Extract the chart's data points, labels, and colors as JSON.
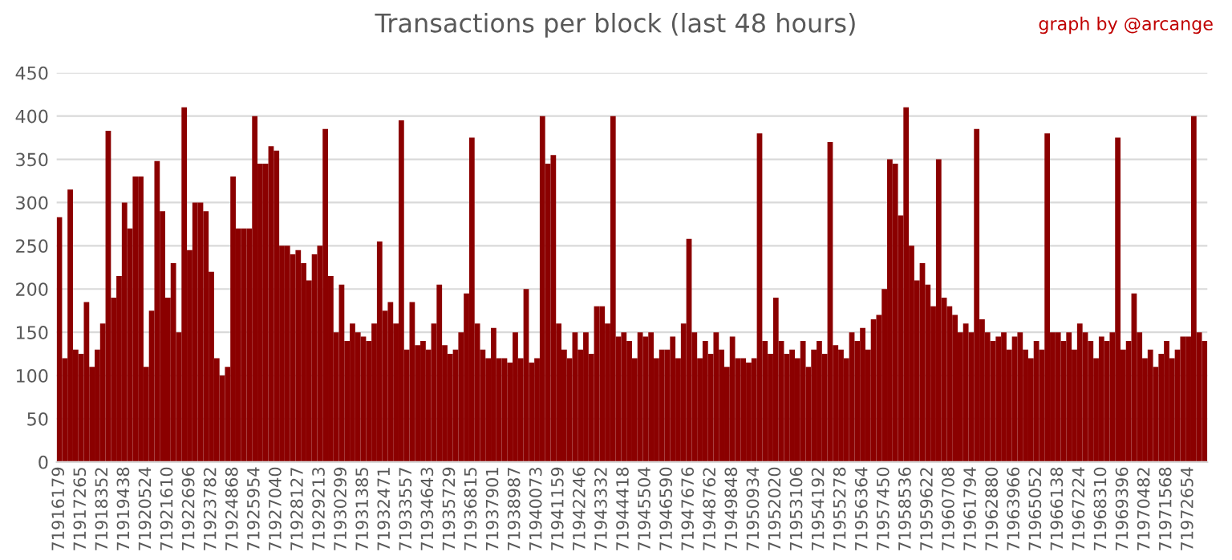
{
  "chart_data": {
    "type": "bar",
    "title": "Transactions per block (last 48 hours)",
    "annotations": [
      "graph by @arcange"
    ],
    "categories": [
      "71916179",
      null,
      null,
      null,
      "71917265",
      null,
      null,
      null,
      "71918352",
      null,
      null,
      null,
      "71919438",
      null,
      null,
      null,
      "71920524",
      null,
      null,
      null,
      "71921610",
      null,
      null,
      null,
      "71922696",
      null,
      null,
      null,
      "71923782",
      null,
      null,
      null,
      "71924868",
      null,
      null,
      null,
      "71925954",
      null,
      null,
      null,
      "71927040",
      null,
      null,
      null,
      "71928127",
      null,
      null,
      null,
      "71929213",
      null,
      null,
      null,
      "71930299",
      null,
      null,
      null,
      "71931385",
      null,
      null,
      null,
      "71932471",
      null,
      null,
      null,
      "71933557",
      null,
      null,
      null,
      "71934643",
      null,
      null,
      null,
      "71935729",
      null,
      null,
      null,
      "71936815",
      null,
      null,
      null,
      "71937901",
      null,
      null,
      null,
      "71938987",
      null,
      null,
      null,
      "71940073",
      null,
      null,
      null,
      "71941159",
      null,
      null,
      null,
      "71942246",
      null,
      null,
      null,
      "71943332",
      null,
      null,
      null,
      "71944418",
      null,
      null,
      null,
      "71945504",
      null,
      null,
      null,
      "71946590",
      null,
      null,
      null,
      "71947676",
      null,
      null,
      null,
      "71948762",
      null,
      null,
      null,
      "71949848",
      null,
      null,
      null,
      "71950934",
      null,
      null,
      null,
      "71952020",
      null,
      null,
      null,
      "71953106",
      null,
      null,
      null,
      "71954192",
      null,
      null,
      null,
      "71955278",
      null,
      null,
      null,
      "71956364",
      null,
      null,
      null,
      "71957450",
      null,
      null,
      null,
      "71958536",
      null,
      null,
      null,
      "71959622",
      null,
      null,
      null,
      "71960708",
      null,
      null,
      null,
      "71961794",
      null,
      null,
      null,
      "71962880",
      null,
      null,
      null,
      "71963966",
      null,
      null,
      null,
      "71965052",
      null,
      null,
      null,
      "71966138",
      null,
      null,
      null,
      "71967224",
      null,
      null,
      null,
      "71968310",
      null,
      null,
      null,
      "71969396",
      null,
      null,
      null,
      "71970482",
      null,
      null,
      null,
      "71971568",
      null,
      null,
      null,
      "71972654",
      null,
      null,
      null
    ],
    "values": [
      283,
      120,
      315,
      130,
      125,
      185,
      110,
      130,
      160,
      383,
      190,
      215,
      300,
      270,
      330,
      330,
      110,
      175,
      348,
      290,
      190,
      230,
      150,
      410,
      245,
      300,
      300,
      290,
      220,
      120,
      100,
      110,
      330,
      270,
      270,
      270,
      400,
      345,
      345,
      365,
      360,
      250,
      250,
      240,
      245,
      230,
      210,
      240,
      250,
      385,
      215,
      150,
      205,
      140,
      160,
      150,
      145,
      140,
      160,
      255,
      175,
      185,
      160,
      395,
      130,
      185,
      135,
      140,
      130,
      160,
      205,
      135,
      125,
      130,
      150,
      195,
      375,
      160,
      130,
      120,
      155,
      120,
      120,
      115,
      150,
      120,
      200,
      115,
      120,
      400,
      345,
      355,
      160,
      130,
      120,
      150,
      130,
      150,
      125,
      180,
      180,
      160,
      400,
      145,
      150,
      140,
      120,
      150,
      145,
      150,
      120,
      130,
      130,
      145,
      120,
      160,
      258,
      150,
      120,
      140,
      125,
      150,
      130,
      110,
      145,
      120,
      120,
      115,
      120,
      380,
      140,
      125,
      190,
      140,
      125,
      130,
      120,
      140,
      110,
      130,
      140,
      125,
      370,
      135,
      130,
      120,
      150,
      140,
      155,
      130,
      165,
      170,
      200,
      350,
      345,
      285,
      410,
      250,
      210,
      230,
      205,
      180,
      350,
      190,
      180,
      170,
      150,
      160,
      150,
      385,
      165,
      150,
      140,
      145,
      150,
      130,
      145,
      150,
      130,
      120,
      140,
      130,
      380,
      150,
      150,
      140,
      150,
      130,
      160,
      150,
      140,
      120,
      145,
      140,
      150,
      375,
      130,
      140,
      195,
      150,
      120,
      130,
      110,
      125,
      140,
      120,
      130,
      145,
      145,
      400,
      150,
      140
    ],
    "color": "#8b0000",
    "ylim": [
      0,
      450
    ],
    "yticks": [
      0,
      50,
      100,
      150,
      200,
      250,
      300,
      350,
      400,
      450
    ],
    "grid": "y"
  }
}
